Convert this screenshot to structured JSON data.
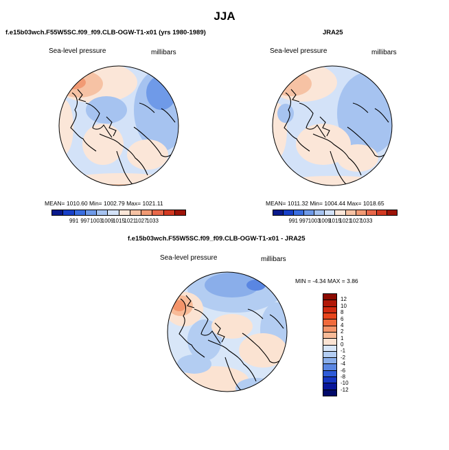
{
  "title": "JJA",
  "panels": {
    "model": {
      "title": "f.e15b03wch.F55W5SC.f09_f09.CLB-OGW-T1-x01 (yrs 1980-1989)",
      "field_label": "Sea-level pressure",
      "units_label": "millibars",
      "stats": "MEAN= 1010.60   Min= 1002.79   Max= 1021.11"
    },
    "obs": {
      "title": "JRA25",
      "field_label": "Sea-level pressure",
      "units_label": "millibars",
      "stats": "MEAN= 1011.32   Min= 1004.44   Max= 1018.65"
    },
    "diff": {
      "title": "f.e15b03wch.F55W5SC.f09_f09.CLB-OGW-T1-x01 - JRA25",
      "field_label": "Sea-level pressure",
      "units_label": "millibars",
      "stats": "MIN =  -4.34  MAX =   3.86"
    }
  },
  "colorbar_abs": {
    "ticks": [
      "991",
      "997",
      "1003",
      "1009",
      "1015",
      "1021",
      "1027",
      "1033"
    ],
    "colors": [
      "#0a1a8c",
      "#1840c8",
      "#3a6ee0",
      "#6f9ae8",
      "#a6c3f0",
      "#d3e2f8",
      "#fbe6d8",
      "#f6c2a4",
      "#f19a74",
      "#e8684a",
      "#d33a22",
      "#9e1408"
    ]
  },
  "colorbar_diff": {
    "ticks": [
      "12",
      "10",
      "8",
      "6",
      "4",
      "2",
      "1",
      "0",
      "-1",
      "-2",
      "-4",
      "-6",
      "-8",
      "-10",
      "-12"
    ],
    "colors": [
      "#8b0a00",
      "#b11808",
      "#d22a10",
      "#e8451c",
      "#f06a3c",
      "#f4946a",
      "#f8bb98",
      "#fbe3d2",
      "#d8e6f8",
      "#b3cdf2",
      "#8aaeea",
      "#5a86e2",
      "#2e5bd8",
      "#1636c2",
      "#08169a",
      "#020a6a"
    ]
  }
}
